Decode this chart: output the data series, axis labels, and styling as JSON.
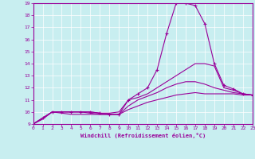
{
  "xlabel": "Windchill (Refroidissement éolien,°C)",
  "ylabel": "",
  "bg_color": "#c8eef0",
  "line_color": "#990099",
  "grid_color": "#ffffff",
  "xlim": [
    0,
    23
  ],
  "ylim": [
    9,
    19
  ],
  "xticks": [
    0,
    1,
    2,
    3,
    4,
    5,
    6,
    7,
    8,
    9,
    10,
    11,
    12,
    13,
    14,
    15,
    16,
    17,
    18,
    19,
    20,
    21,
    22,
    23
  ],
  "yticks": [
    9,
    10,
    11,
    12,
    13,
    14,
    15,
    16,
    17,
    18,
    19
  ],
  "lines": [
    {
      "x": [
        0,
        1,
        2,
        3,
        4,
        5,
        6,
        7,
        8,
        9,
        10,
        11,
        12,
        13,
        14,
        15,
        16,
        17,
        18,
        19,
        20,
        21,
        22,
        23
      ],
      "y": [
        9.0,
        9.5,
        10.0,
        10.0,
        10.0,
        10.0,
        10.0,
        9.9,
        9.8,
        9.8,
        11.0,
        11.5,
        12.0,
        13.5,
        16.5,
        19.0,
        19.0,
        18.8,
        17.3,
        14.0,
        12.2,
        11.9,
        11.5,
        11.4
      ],
      "marker": true
    },
    {
      "x": [
        0,
        1,
        2,
        3,
        4,
        5,
        6,
        7,
        8,
        9,
        10,
        11,
        12,
        13,
        14,
        15,
        16,
        17,
        18,
        19,
        20,
        21,
        22,
        23
      ],
      "y": [
        9.0,
        9.5,
        10.0,
        10.0,
        10.0,
        10.0,
        10.0,
        9.9,
        9.9,
        10.0,
        11.0,
        11.2,
        11.5,
        12.0,
        12.5,
        13.0,
        13.5,
        14.0,
        14.0,
        13.8,
        12.0,
        11.8,
        11.5,
        11.4
      ],
      "marker": false
    },
    {
      "x": [
        0,
        1,
        2,
        3,
        4,
        5,
        6,
        7,
        8,
        9,
        10,
        11,
        12,
        13,
        14,
        15,
        16,
        17,
        18,
        19,
        20,
        21,
        22,
        23
      ],
      "y": [
        9.0,
        9.5,
        10.0,
        10.0,
        10.0,
        10.0,
        9.9,
        9.8,
        9.8,
        9.8,
        10.5,
        11.0,
        11.3,
        11.6,
        12.0,
        12.3,
        12.5,
        12.5,
        12.3,
        12.0,
        11.8,
        11.6,
        11.5,
        11.4
      ],
      "marker": false
    },
    {
      "x": [
        0,
        1,
        2,
        3,
        4,
        5,
        6,
        7,
        8,
        9,
        10,
        11,
        12,
        13,
        14,
        15,
        16,
        17,
        18,
        19,
        20,
        21,
        22,
        23
      ],
      "y": [
        9.0,
        9.4,
        10.0,
        9.9,
        9.8,
        9.8,
        9.8,
        9.8,
        9.8,
        9.8,
        10.2,
        10.5,
        10.8,
        11.0,
        11.2,
        11.4,
        11.5,
        11.6,
        11.5,
        11.5,
        11.5,
        11.5,
        11.4,
        11.4
      ],
      "marker": false
    }
  ]
}
